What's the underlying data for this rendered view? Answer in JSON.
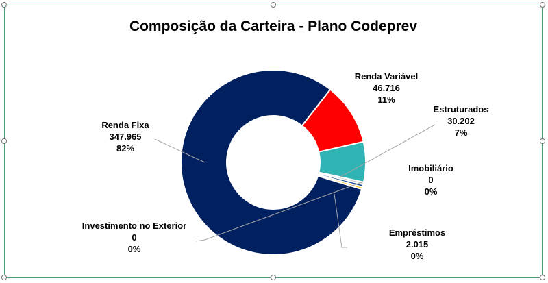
{
  "chart_data": {
    "type": "pie",
    "donut": true,
    "title": "Composição da Carteira - Plano Codeprev",
    "slices": [
      {
        "name": "Renda Variável",
        "value_label": "46.716",
        "pct_label": "11%",
        "value": 46716,
        "color": "#ff0000"
      },
      {
        "name": "Estruturados",
        "value_label": "30.202",
        "pct_label": "7%",
        "value": 30202,
        "color": "#2fb3b3"
      },
      {
        "name": "Imobiliário",
        "value_label": "0",
        "pct_label": "0%",
        "value": 0,
        "color": "#c0c0c0"
      },
      {
        "name": "Empréstimos",
        "value_label": "2.015",
        "pct_label": "0%",
        "value": 2015,
        "color": "#1f4e9a"
      },
      {
        "name": "Investimento no Exterior",
        "value_label": "0",
        "pct_label": "0%",
        "value": 0,
        "color": "#ffc000"
      },
      {
        "name": "Renda Fixa",
        "value_label": "347.965",
        "pct_label": "82%",
        "value": 347965,
        "color": "#002060"
      }
    ]
  },
  "frame": {
    "border_color": "#4a9a72"
  }
}
